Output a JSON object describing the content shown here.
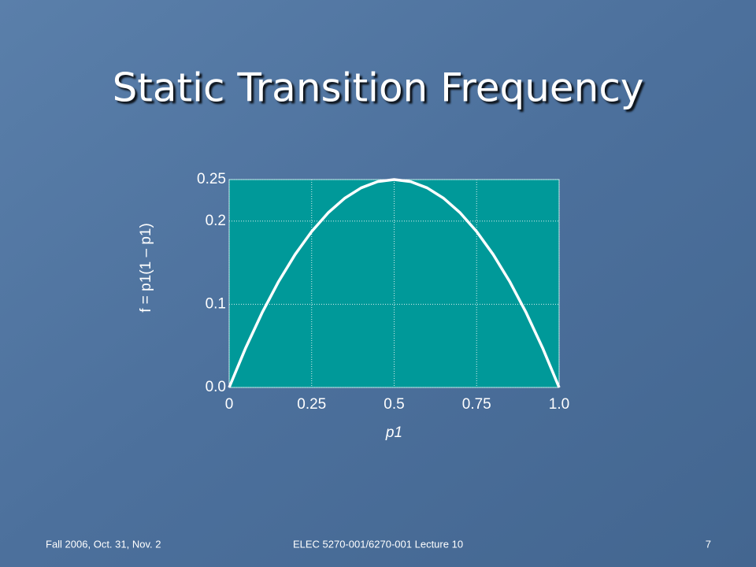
{
  "chart_data": {
    "type": "line",
    "title": "Static Transition Frequency",
    "x_label": "p1",
    "y_label": "f = p1(1 – p1)",
    "x": [
      0,
      0.05,
      0.1,
      0.15,
      0.2,
      0.25,
      0.3,
      0.35,
      0.4,
      0.45,
      0.5,
      0.55,
      0.6,
      0.65,
      0.7,
      0.75,
      0.8,
      0.85,
      0.9,
      0.95,
      1
    ],
    "values": [
      0,
      0.0475,
      0.09,
      0.1275,
      0.16,
      0.1875,
      0.21,
      0.2275,
      0.24,
      0.2475,
      0.25,
      0.2475,
      0.24,
      0.2275,
      0.21,
      0.1875,
      0.16,
      0.1275,
      0.09,
      0.0475,
      0
    ],
    "color": "#ffffff",
    "plot_background": "#009999",
    "xlim": [
      0,
      1
    ],
    "xticks": [
      0,
      0.25,
      0.5,
      0.75,
      {
        "value": 1,
        "label": "1.0"
      }
    ],
    "ylim": [
      0,
      0.25
    ],
    "yticks": [
      {
        "value": 0,
        "label": "0.0"
      },
      0.1,
      0.2,
      0.25
    ],
    "grid": true
  },
  "footer": {
    "left": "Fall 2006, Oct. 31, Nov. 2",
    "center": "ELEC 5270-001/6270-001 Lecture 10",
    "right": "7"
  }
}
